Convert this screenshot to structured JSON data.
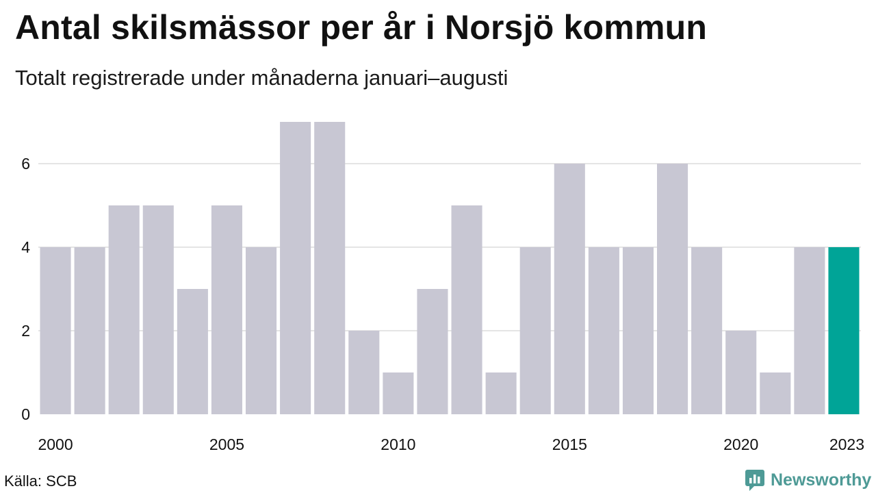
{
  "title": "Antal skilsmässor per år i Norsjö kommun",
  "subtitle": "Totalt registrerade under månaderna januari–augusti",
  "source": "Källa: SCB",
  "brand": "Newsworthy",
  "colors": {
    "bar": "#c8c7d3",
    "highlight": "#00a497",
    "grid": "#e5e5e5",
    "brand": "#4e9a96"
  },
  "chart_data": {
    "type": "bar",
    "categories": [
      "2000",
      "2001",
      "2002",
      "2003",
      "2004",
      "2005",
      "2006",
      "2007",
      "2008",
      "2009",
      "2010",
      "2011",
      "2012",
      "2013",
      "2014",
      "2015",
      "2016",
      "2017",
      "2018",
      "2019",
      "2020",
      "2021",
      "2022",
      "2023"
    ],
    "values": [
      4,
      4,
      5,
      5,
      3,
      5,
      4,
      7,
      7,
      2,
      1,
      3,
      5,
      1,
      4,
      6,
      4,
      4,
      6,
      4,
      2,
      1,
      4,
      4
    ],
    "highlight_category": "2023",
    "x_tick_labels": [
      "2000",
      "2005",
      "2010",
      "2015",
      "2020",
      "2023"
    ],
    "y_ticks": [
      0,
      2,
      4,
      6
    ],
    "ylim": [
      0,
      7
    ],
    "grid": true,
    "xlabel": "",
    "ylabel": ""
  }
}
